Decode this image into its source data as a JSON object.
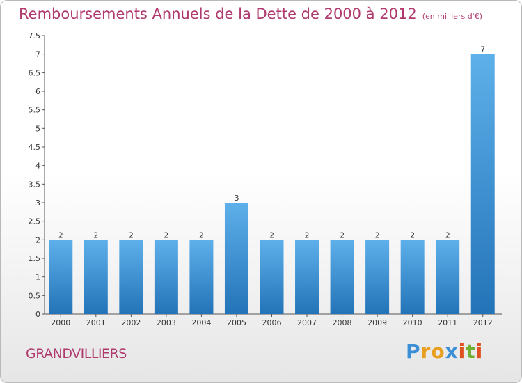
{
  "title": "Remboursements Annuels de la Dette de 2000 à 2012",
  "unit": "(en milliers d'€)",
  "commune": "GRANDVILLIERS",
  "logo": {
    "letters": [
      "P",
      "r",
      "o",
      "x",
      "i",
      "t",
      "i"
    ],
    "colors": [
      "#3a8fd6",
      "#e8a020",
      "#e8a020",
      "#3a8fd6",
      "#e05020",
      "#70b030",
      "#e05020"
    ]
  },
  "colors": {
    "bar_light": "#5eb0ea",
    "bar_dark": "#2373b8",
    "title": "#b03a6e"
  },
  "chart_data": {
    "type": "bar",
    "categories": [
      "2000",
      "2001",
      "2002",
      "2003",
      "2004",
      "2005",
      "2006",
      "2007",
      "2008",
      "2009",
      "2010",
      "2011",
      "2012"
    ],
    "values": [
      2,
      2,
      2,
      2,
      2,
      3,
      2,
      2,
      2,
      2,
      2,
      2,
      7
    ],
    "value_labels": [
      "2",
      "2",
      "2",
      "2",
      "2",
      "3",
      "2",
      "2",
      "2",
      "2",
      "2",
      "2",
      "7"
    ],
    "y_ticks": [
      "0",
      "0.5",
      "1",
      "1.5",
      "2",
      "2.5",
      "3",
      "3.5",
      "4",
      "4.5",
      "5",
      "5.5",
      "6",
      "6.5",
      "7",
      "7.5"
    ],
    "ylim": [
      0,
      7.5
    ],
    "grid": false,
    "legend": "none"
  }
}
